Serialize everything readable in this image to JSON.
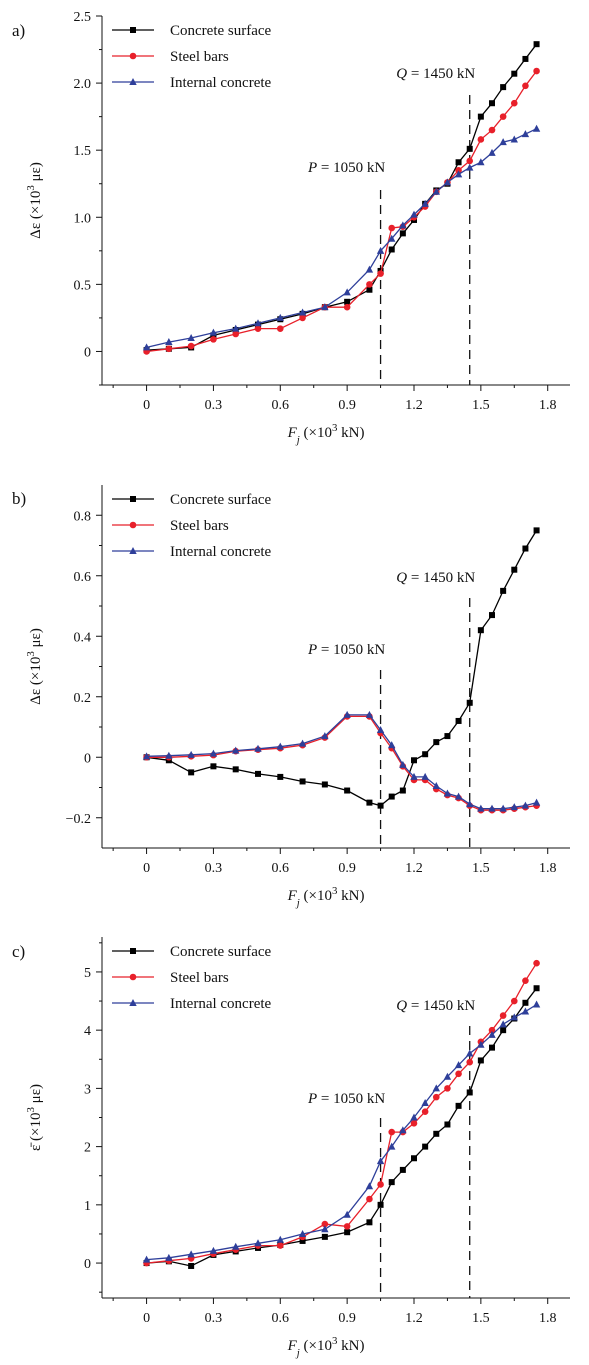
{
  "figure": {
    "panels": [
      {
        "letter": "a)",
        "xlabel": "F_j (×10^3 kN)",
        "ylabel": "Δε (×10^3 με)",
        "annotations": [
          "P = 1050 kN",
          "Q = 1450 kN"
        ]
      },
      {
        "letter": "b)",
        "xlabel": "F_j (×10^3 kN)",
        "ylabel": "Δε (×10^3 με)",
        "annotations": [
          "P = 1050 kN",
          "Q = 1450 kN"
        ]
      },
      {
        "letter": "c)",
        "xlabel": "F_j (×10^3 kN)",
        "ylabel": "ε̄ (×10^3 με)",
        "annotations": [
          "P = 1050 kN",
          "Q = 1450 kN"
        ]
      }
    ]
  },
  "chart_data": [
    {
      "type": "line",
      "panel_label": "a)",
      "xlabel": "F_j (×10^3 kN)",
      "ylabel": "Δε (×10^3 με)",
      "xlim": [
        -0.2,
        1.9
      ],
      "ylim": [
        -0.25,
        2.5
      ],
      "xticks": [
        0,
        0.3,
        0.6,
        0.9,
        1.2,
        1.5,
        1.8
      ],
      "xtick_labels": [
        "0",
        "0.3",
        "0.6",
        "0.9",
        "1.2",
        "1.5",
        "1.8"
      ],
      "yticks": [
        0,
        0.5,
        1.0,
        1.5,
        2.0,
        2.5
      ],
      "ytick_labels": [
        "0",
        "0.5",
        "1.0",
        "1.5",
        "2.0",
        "2.5"
      ],
      "legend_position": "top-left",
      "grid": false,
      "vlines": [
        {
          "x": 1.05,
          "label": "P = 1050 kN"
        },
        {
          "x": 1.45,
          "label": "Q = 1450 kN"
        }
      ],
      "series": [
        {
          "name": "Concrete surface",
          "color": "#000000",
          "marker": "square",
          "x": [
            0,
            0.1,
            0.2,
            0.3,
            0.4,
            0.5,
            0.6,
            0.7,
            0.8,
            0.9,
            1.0,
            1.05,
            1.1,
            1.15,
            1.2,
            1.25,
            1.3,
            1.35,
            1.4,
            1.45,
            1.5,
            1.55,
            1.6,
            1.65,
            1.7,
            1.75
          ],
          "y": [
            0.01,
            0.02,
            0.03,
            0.12,
            0.16,
            0.2,
            0.24,
            0.28,
            0.33,
            0.37,
            0.46,
            0.6,
            0.76,
            0.88,
            0.98,
            1.1,
            1.2,
            1.25,
            1.41,
            1.51,
            1.75,
            1.85,
            1.97,
            2.07,
            2.18,
            2.29
          ]
        },
        {
          "name": "Steel bars",
          "color": "#e8202a",
          "marker": "circle",
          "x": [
            0,
            0.1,
            0.2,
            0.3,
            0.4,
            0.5,
            0.6,
            0.7,
            0.8,
            0.9,
            1.0,
            1.05,
            1.1,
            1.15,
            1.2,
            1.25,
            1.3,
            1.35,
            1.4,
            1.45,
            1.5,
            1.55,
            1.6,
            1.65,
            1.7,
            1.75
          ],
          "y": [
            0.0,
            0.02,
            0.04,
            0.09,
            0.13,
            0.17,
            0.17,
            0.25,
            0.33,
            0.33,
            0.5,
            0.58,
            0.92,
            0.93,
            1.0,
            1.08,
            1.19,
            1.26,
            1.35,
            1.42,
            1.58,
            1.65,
            1.75,
            1.85,
            1.98,
            2.09
          ]
        },
        {
          "name": "Internal concrete",
          "color": "#2e3f9a",
          "marker": "triangle",
          "x": [
            0,
            0.1,
            0.2,
            0.3,
            0.4,
            0.5,
            0.6,
            0.7,
            0.8,
            0.9,
            1.0,
            1.05,
            1.1,
            1.15,
            1.2,
            1.25,
            1.3,
            1.35,
            1.4,
            1.45,
            1.5,
            1.55,
            1.6,
            1.65,
            1.7,
            1.75
          ],
          "y": [
            0.03,
            0.07,
            0.1,
            0.14,
            0.17,
            0.21,
            0.25,
            0.29,
            0.33,
            0.44,
            0.61,
            0.75,
            0.84,
            0.94,
            1.02,
            1.1,
            1.19,
            1.26,
            1.32,
            1.37,
            1.41,
            1.48,
            1.56,
            1.58,
            1.62,
            1.66
          ]
        }
      ]
    },
    {
      "type": "line",
      "panel_label": "b)",
      "xlabel": "F_j (×10^3 kN)",
      "ylabel": "Δε (×10^3 με)",
      "xlim": [
        -0.2,
        1.9
      ],
      "ylim": [
        -0.3,
        0.9
      ],
      "xticks": [
        0,
        0.3,
        0.6,
        0.9,
        1.2,
        1.5,
        1.8
      ],
      "xtick_labels": [
        "0",
        "0.3",
        "0.6",
        "0.9",
        "1.2",
        "1.5",
        "1.8"
      ],
      "yticks": [
        -0.2,
        0,
        0.2,
        0.4,
        0.6,
        0.8
      ],
      "ytick_labels": [
        "−0.2",
        "0",
        "0.2",
        "0.4",
        "0.6",
        "0.8"
      ],
      "legend_position": "top-left",
      "grid": false,
      "vlines": [
        {
          "x": 1.05,
          "label": "P = 1050 kN"
        },
        {
          "x": 1.45,
          "label": "Q = 1450 kN"
        }
      ],
      "series": [
        {
          "name": "Concrete surface",
          "color": "#000000",
          "marker": "square",
          "x": [
            0,
            0.1,
            0.2,
            0.3,
            0.4,
            0.5,
            0.6,
            0.7,
            0.8,
            0.9,
            1.0,
            1.05,
            1.1,
            1.15,
            1.2,
            1.25,
            1.3,
            1.35,
            1.4,
            1.45,
            1.5,
            1.55,
            1.6,
            1.65,
            1.7,
            1.75
          ],
          "y": [
            0.0,
            -0.01,
            -0.05,
            -0.03,
            -0.04,
            -0.055,
            -0.065,
            -0.08,
            -0.09,
            -0.11,
            -0.15,
            -0.16,
            -0.13,
            -0.11,
            -0.01,
            0.01,
            0.05,
            0.07,
            0.12,
            0.18,
            0.42,
            0.47,
            0.55,
            0.62,
            0.69,
            0.75
          ]
        },
        {
          "name": "Steel bars",
          "color": "#e8202a",
          "marker": "circle",
          "x": [
            0,
            0.1,
            0.2,
            0.3,
            0.4,
            0.5,
            0.6,
            0.7,
            0.8,
            0.9,
            1.0,
            1.05,
            1.1,
            1.15,
            1.2,
            1.25,
            1.3,
            1.35,
            1.4,
            1.45,
            1.5,
            1.55,
            1.6,
            1.65,
            1.7,
            1.75
          ],
          "y": [
            0.0,
            0.0,
            0.003,
            0.007,
            0.02,
            0.025,
            0.03,
            0.04,
            0.065,
            0.135,
            0.135,
            0.08,
            0.03,
            -0.03,
            -0.075,
            -0.075,
            -0.105,
            -0.125,
            -0.135,
            -0.16,
            -0.175,
            -0.175,
            -0.175,
            -0.17,
            -0.165,
            -0.16
          ]
        },
        {
          "name": "Internal concrete",
          "color": "#2e3f9a",
          "marker": "triangle",
          "x": [
            0,
            0.1,
            0.2,
            0.3,
            0.4,
            0.5,
            0.6,
            0.7,
            0.8,
            0.9,
            1.0,
            1.05,
            1.1,
            1.15,
            1.2,
            1.25,
            1.3,
            1.35,
            1.4,
            1.45,
            1.5,
            1.55,
            1.6,
            1.65,
            1.7,
            1.75
          ],
          "y": [
            0.003,
            0.005,
            0.008,
            0.012,
            0.022,
            0.028,
            0.035,
            0.045,
            0.07,
            0.14,
            0.14,
            0.09,
            0.04,
            -0.025,
            -0.065,
            -0.065,
            -0.095,
            -0.12,
            -0.13,
            -0.155,
            -0.17,
            -0.17,
            -0.17,
            -0.165,
            -0.16,
            -0.15
          ]
        }
      ]
    },
    {
      "type": "line",
      "panel_label": "c)",
      "xlabel": "F_j (×10^3 kN)",
      "ylabel": "ε̄ (×10^3 με)",
      "xlim": [
        -0.2,
        1.9
      ],
      "ylim": [
        -0.6,
        5.6
      ],
      "xticks": [
        0,
        0.3,
        0.6,
        0.9,
        1.2,
        1.5,
        1.8
      ],
      "xtick_labels": [
        "0",
        "0.3",
        "0.6",
        "0.9",
        "1.2",
        "1.5",
        "1.8"
      ],
      "yticks": [
        0,
        1,
        2,
        3,
        4,
        5
      ],
      "ytick_labels": [
        "0",
        "1",
        "2",
        "3",
        "4",
        "5"
      ],
      "legend_position": "top-left",
      "grid": false,
      "vlines": [
        {
          "x": 1.05,
          "label": "P = 1050 kN"
        },
        {
          "x": 1.45,
          "label": "Q = 1450 kN"
        }
      ],
      "series": [
        {
          "name": "Concrete surface",
          "color": "#000000",
          "marker": "square",
          "x": [
            0,
            0.1,
            0.2,
            0.3,
            0.4,
            0.5,
            0.6,
            0.7,
            0.8,
            0.9,
            1.0,
            1.05,
            1.1,
            1.15,
            1.2,
            1.25,
            1.3,
            1.35,
            1.4,
            1.45,
            1.5,
            1.55,
            1.6,
            1.65,
            1.7,
            1.75
          ],
          "y": [
            0.0,
            0.03,
            -0.05,
            0.14,
            0.2,
            0.26,
            0.31,
            0.38,
            0.45,
            0.53,
            0.7,
            1.0,
            1.39,
            1.6,
            1.8,
            2.0,
            2.22,
            2.38,
            2.7,
            2.93,
            3.48,
            3.7,
            4.0,
            4.2,
            4.47,
            4.72
          ]
        },
        {
          "name": "Steel bars",
          "color": "#e8202a",
          "marker": "circle",
          "x": [
            0,
            0.1,
            0.2,
            0.3,
            0.4,
            0.5,
            0.6,
            0.7,
            0.8,
            0.9,
            1.0,
            1.05,
            1.1,
            1.15,
            1.2,
            1.25,
            1.3,
            1.35,
            1.4,
            1.45,
            1.5,
            1.55,
            1.6,
            1.65,
            1.7,
            1.75
          ],
          "y": [
            0.0,
            0.04,
            0.08,
            0.16,
            0.23,
            0.3,
            0.3,
            0.45,
            0.67,
            0.63,
            1.1,
            1.35,
            2.25,
            2.25,
            2.4,
            2.6,
            2.85,
            3.0,
            3.25,
            3.45,
            3.8,
            4.0,
            4.25,
            4.5,
            4.85,
            5.15
          ]
        },
        {
          "name": "Internal concrete",
          "color": "#2e3f9a",
          "marker": "triangle",
          "x": [
            0,
            0.1,
            0.2,
            0.3,
            0.4,
            0.5,
            0.6,
            0.7,
            0.8,
            0.9,
            1.0,
            1.05,
            1.1,
            1.15,
            1.2,
            1.25,
            1.3,
            1.35,
            1.4,
            1.45,
            1.5,
            1.55,
            1.6,
            1.65,
            1.7,
            1.75
          ],
          "y": [
            0.06,
            0.09,
            0.15,
            0.21,
            0.28,
            0.34,
            0.4,
            0.5,
            0.58,
            0.83,
            1.32,
            1.75,
            2.0,
            2.28,
            2.5,
            2.75,
            3.0,
            3.2,
            3.4,
            3.6,
            3.75,
            3.92,
            4.1,
            4.22,
            4.32,
            4.44
          ]
        }
      ]
    }
  ]
}
